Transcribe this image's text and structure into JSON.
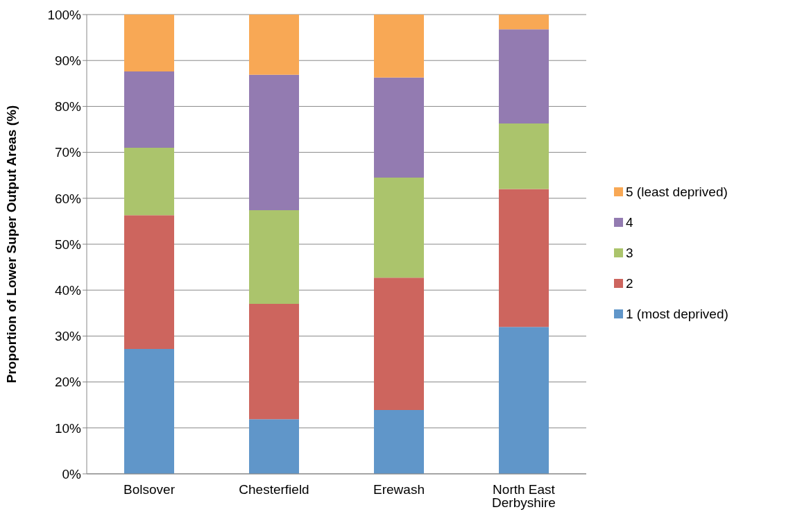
{
  "chart_data": {
    "type": "bar",
    "stacked": true,
    "ylabel": "Proportion of Lower Super Output Areas (%)",
    "categories": [
      "Bolsover",
      "Chesterfield",
      "Erewash",
      "North East Derbyshire"
    ],
    "series": [
      {
        "name": "1 (most deprived)",
        "color": "#6096c9",
        "values": [
          27.2,
          11.9,
          13.9,
          32.0
        ]
      },
      {
        "name": "2",
        "color": "#cd655e",
        "values": [
          29.1,
          25.1,
          28.8,
          30.0
        ]
      },
      {
        "name": "3",
        "color": "#abc46c",
        "values": [
          14.7,
          20.4,
          21.8,
          14.3
        ]
      },
      {
        "name": "4",
        "color": "#937bb1",
        "values": [
          16.6,
          29.5,
          21.8,
          20.5
        ]
      },
      {
        "name": "5 (least deprived)",
        "color": "#f8a855",
        "values": [
          12.4,
          13.1,
          13.7,
          3.2
        ]
      }
    ],
    "ylim": [
      0,
      100
    ],
    "yticks": [
      {
        "value": 0,
        "label": "0%"
      },
      {
        "value": 10,
        "label": "10%"
      },
      {
        "value": 20,
        "label": "20%"
      },
      {
        "value": 30,
        "label": "30%"
      },
      {
        "value": 40,
        "label": "40%"
      },
      {
        "value": 50,
        "label": "50%"
      },
      {
        "value": 60,
        "label": "60%"
      },
      {
        "value": 70,
        "label": "70%"
      },
      {
        "value": 80,
        "label": "80%"
      },
      {
        "value": 90,
        "label": "90%"
      },
      {
        "value": 100,
        "label": "100%"
      }
    ],
    "grid": "y",
    "legend": "right"
  }
}
